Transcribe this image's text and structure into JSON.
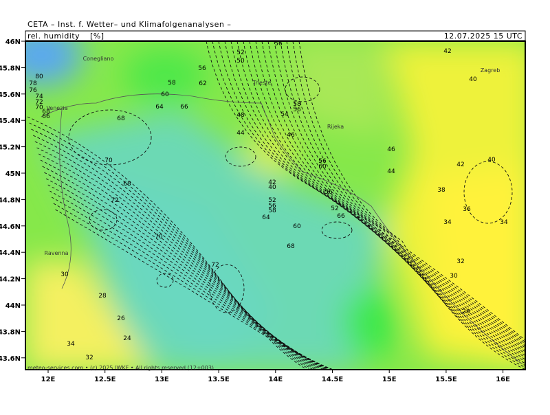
{
  "header": {
    "title": "CETA – Inst. f. Wetter– und Klimafolgenanalysen –",
    "parameter": "rel. humidity",
    "unit": "[%]",
    "valid_time": "12.07.2025 15 UTC"
  },
  "map": {
    "lat_ticks": [
      "46N",
      "45.8N",
      "45.6N",
      "45.4N",
      "45.2N",
      "45N",
      "44.8N",
      "44.6N",
      "44.4N",
      "44.2N",
      "44N",
      "43.8N",
      "43.6N"
    ],
    "lon_ticks": [
      "12E",
      "12.5E",
      "13E",
      "13.5E",
      "14E",
      "14.5E",
      "15E",
      "15.5E",
      "16E"
    ],
    "cities": [
      "Conegliano",
      "Venezia",
      "Trieste",
      "Rijeka",
      "Zagreb",
      "Ravenna"
    ],
    "contour_labels": [
      80,
      78,
      76,
      74,
      72,
      70,
      68,
      66,
      58,
      60,
      64,
      56,
      62,
      66,
      68,
      52,
      50,
      56,
      48,
      44,
      46,
      54,
      58,
      56,
      42,
      40,
      46,
      44,
      42,
      40,
      38,
      36,
      34,
      34,
      32,
      30,
      28,
      70,
      72,
      68,
      70,
      72,
      68,
      60,
      64,
      42,
      40,
      52,
      56,
      58,
      56,
      60,
      56,
      52,
      66,
      30,
      28,
      26,
      24,
      34,
      32
    ]
  },
  "footer": "meteo-services.com • (c) 2025 IWKF • All rights reserved (12+003)"
}
